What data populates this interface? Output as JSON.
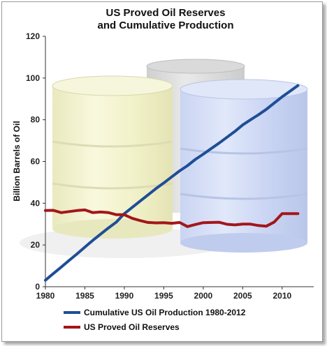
{
  "chart_data": {
    "type": "line",
    "title_lines": [
      "US Proved Oil Reserves",
      "and Cumulative Production"
    ],
    "xlabel": "",
    "ylabel": "Billion Barrels of Oil",
    "xlim": [
      1980,
      2014
    ],
    "ylim": [
      0,
      120
    ],
    "x_ticks": [
      1980,
      1985,
      1990,
      1995,
      2000,
      2005,
      2010
    ],
    "y_ticks": [
      0,
      20,
      40,
      60,
      80,
      100,
      120
    ],
    "grid": false,
    "legend_position": "bottom",
    "background_image": "oil-barrels",
    "series": [
      {
        "name": "Cumulative US Oil Production 1980-2012",
        "color": "#1f4e96",
        "x": [
          1980,
          1981,
          1982,
          1983,
          1984,
          1985,
          1986,
          1987,
          1988,
          1989,
          1990,
          1991,
          1992,
          1993,
          1994,
          1995,
          1996,
          1997,
          1998,
          1999,
          2000,
          2001,
          2002,
          2003,
          2004,
          2005,
          2006,
          2007,
          2008,
          2009,
          2010,
          2011,
          2012
        ],
        "values": [
          3.1,
          6.3,
          9.4,
          12.6,
          15.7,
          19.0,
          22.2,
          25.2,
          28.2,
          31.0,
          35.0,
          38.0,
          41.0,
          44.0,
          47.0,
          49.7,
          52.6,
          55.5,
          58.0,
          61.0,
          63.5,
          66.2,
          68.8,
          71.6,
          74.4,
          77.5,
          80.0,
          82.4,
          85.0,
          88.0,
          91.0,
          93.7,
          96.4
        ]
      },
      {
        "name": "US Proved Oil Reserves",
        "color": "#a3161a",
        "x": [
          1980,
          1981,
          1982,
          1983,
          1984,
          1985,
          1986,
          1987,
          1988,
          1989,
          1990,
          1991,
          1992,
          1993,
          1994,
          1995,
          1996,
          1997,
          1998,
          1999,
          2000,
          2001,
          2002,
          2003,
          2004,
          2005,
          2006,
          2007,
          2008,
          2009,
          2010,
          2011,
          2012
        ],
        "values": [
          36.5,
          36.6,
          35.5,
          36.0,
          36.5,
          36.8,
          35.5,
          35.8,
          35.5,
          34.5,
          34.5,
          32.8,
          31.7,
          30.8,
          30.6,
          30.7,
          30.4,
          30.8,
          28.8,
          29.8,
          30.7,
          30.8,
          30.9,
          29.9,
          29.6,
          30.0,
          30.0,
          29.3,
          29.0,
          31.0,
          35.0,
          35.0,
          35.0
        ]
      }
    ]
  }
}
